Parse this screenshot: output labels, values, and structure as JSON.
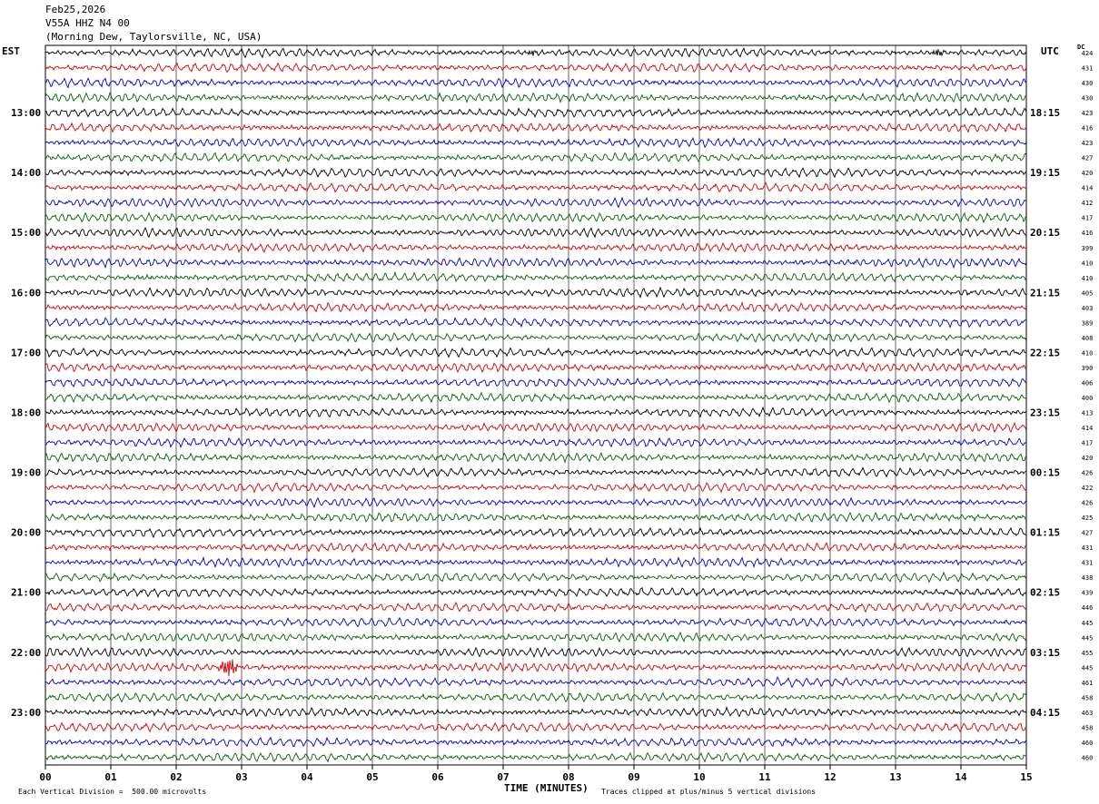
{
  "header": {
    "date": "Feb25,2026",
    "station": "V55A HHZ N4 00",
    "location": "(Morning Dew, Taylorsville, NC, USA)"
  },
  "labels": {
    "left_zone": "EST",
    "right_zone": "UTC",
    "dc_header": "DC",
    "x_axis_title": "TIME (MINUTES)",
    "scale_note": "Each Vertical Division =  500.00 microvolts",
    "clip_note": "Traces clipped at plus/minus 5 vertical divisions"
  },
  "chart_data": {
    "type": "line",
    "title": "",
    "xlabel": "TIME (MINUTES)",
    "xlim": [
      0,
      15
    ],
    "x_ticks": [
      "00",
      "01",
      "02",
      "03",
      "04",
      "05",
      "06",
      "07",
      "08",
      "09",
      "10",
      "11",
      "12",
      "13",
      "14",
      "15"
    ],
    "trace_colors": [
      "#000000",
      "#d40000",
      "#0000c8",
      "#006400"
    ],
    "left_hour_labels": [
      "13:00",
      "14:00",
      "15:00",
      "16:00",
      "17:00",
      "18:00",
      "19:00",
      "20:00",
      "21:00",
      "22:00",
      "23:00"
    ],
    "right_hour_labels": [
      "18:15",
      "19:15",
      "20:15",
      "21:15",
      "22:15",
      "23:15",
      "00:15",
      "01:15",
      "02:15",
      "03:15",
      "04:15"
    ],
    "dc_offsets": [
      424,
      431,
      430,
      430,
      423,
      416,
      423,
      427,
      420,
      414,
      412,
      417,
      416,
      399,
      410,
      410,
      405,
      403,
      389,
      408,
      410,
      390,
      406,
      400,
      413,
      414,
      417,
      420,
      426,
      422,
      426,
      425,
      427,
      431,
      431,
      438,
      439,
      446,
      445,
      445,
      455,
      445,
      461,
      458,
      463,
      458,
      460,
      460
    ],
    "events": [
      {
        "trace": 41,
        "minute_start": 2.6,
        "minute_end": 3.0,
        "note": "large burst"
      },
      {
        "trace": 0,
        "minute_start": 7.3,
        "minute_end": 7.6,
        "note": "burst"
      },
      {
        "trace": 0,
        "minute_start": 13.5,
        "minute_end": 13.8,
        "note": "burst"
      }
    ]
  }
}
